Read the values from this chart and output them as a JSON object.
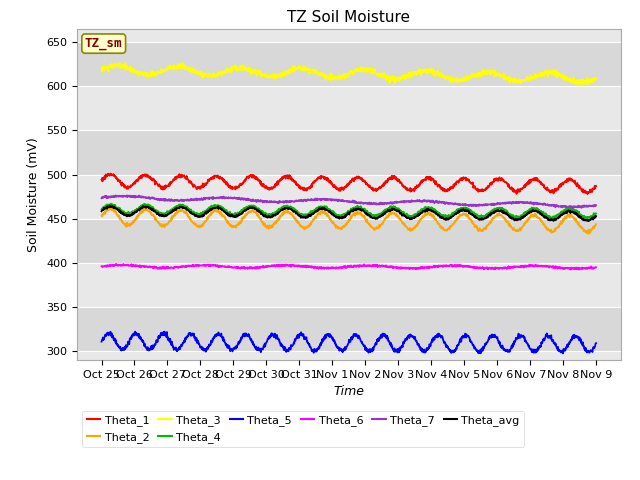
{
  "title": "TZ Soil Moisture",
  "xlabel": "Time",
  "ylabel": "Soil Moisture (mV)",
  "ylim": [
    290,
    665
  ],
  "yticks": [
    300,
    350,
    400,
    450,
    500,
    550,
    600,
    650
  ],
  "x_labels": [
    "Oct 25",
    "Oct 26",
    "Oct 27",
    "Oct 28",
    "Oct 29",
    "Oct 30",
    "Oct 31",
    "Nov 1",
    "Nov 2",
    "Nov 3",
    "Nov 4",
    "Nov 5",
    "Nov 6",
    "Nov 7",
    "Nov 8",
    "Nov 9"
  ],
  "n_points": 1500,
  "series": {
    "Theta_1": {
      "color": "#ff0000",
      "base": 493,
      "trend": -6,
      "amp": 7,
      "freq": 14,
      "noise": 1.0
    },
    "Theta_2": {
      "color": "#ffa500",
      "base": 452,
      "trend": -8,
      "amp": 9,
      "freq": 14,
      "noise": 0.8
    },
    "Theta_3": {
      "color": "#ffff00",
      "base": 619,
      "trend": -10,
      "amp": 5,
      "freq": 8,
      "noise": 1.5
    },
    "Theta_4": {
      "color": "#00bb00",
      "base": 461,
      "trend": -5,
      "amp": 5,
      "freq": 14,
      "noise": 0.7
    },
    "Theta_5": {
      "color": "#0000ff",
      "base": 311,
      "trend": -3,
      "amp": 9,
      "freq": 18,
      "noise": 1.2
    },
    "Theta_6": {
      "color": "#ff00ff",
      "base": 396,
      "trend": -1,
      "amp": 1.5,
      "freq": 6,
      "noise": 0.5
    },
    "Theta_7": {
      "color": "#9933cc",
      "base": 474,
      "trend": -9,
      "amp": 2,
      "freq": 5,
      "noise": 0.5
    },
    "Theta_avg": {
      "color": "#000000",
      "base": 459,
      "trend": -6,
      "amp": 5,
      "freq": 14,
      "noise": 0.6
    }
  },
  "legend_label": "TZ_sm",
  "legend_bg": "#ffffcc",
  "legend_border_color": "#888800",
  "legend_text_color": "#880000",
  "plot_bg_light": "#e8e8e8",
  "plot_bg_dark": "#d8d8d8",
  "title_fontsize": 11,
  "axis_fontsize": 9,
  "tick_fontsize": 8
}
